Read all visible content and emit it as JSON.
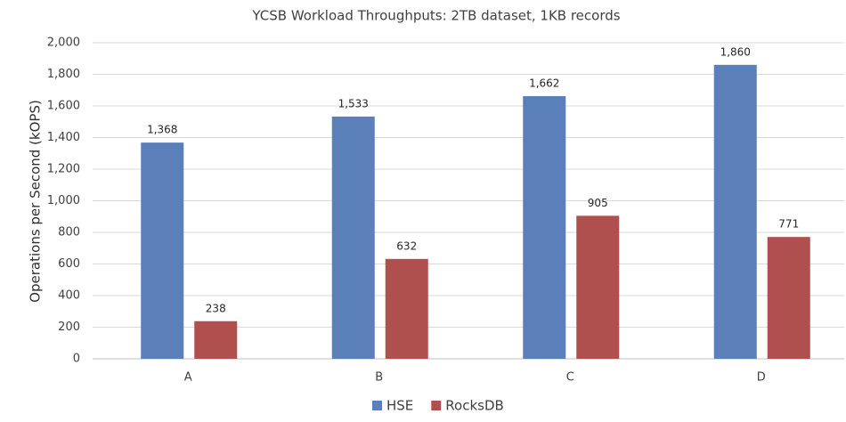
{
  "chart_data": {
    "type": "bar",
    "title": "YCSB Workload Throughputs: 2TB dataset, 1KB records",
    "y_label": "Operations per Second (kOPS)",
    "categories": [
      "A",
      "B",
      "C",
      "D"
    ],
    "series": [
      {
        "name": "HSE",
        "color": "#5b7fb8",
        "values": [
          1368,
          1533,
          1662,
          1860
        ],
        "value_labels": [
          "1,368",
          "1,533",
          "1,662",
          "1,860"
        ]
      },
      {
        "name": "RocksDB",
        "color": "#b0504e",
        "values": [
          238,
          632,
          905,
          771
        ],
        "value_labels": [
          "238",
          "632",
          "905",
          "771"
        ]
      }
    ],
    "ylim": [
      0,
      2000
    ],
    "yticks": [
      0,
      200,
      400,
      600,
      800,
      {
        "value": 1000,
        "label": "1,000"
      },
      {
        "value": 1200,
        "label": "1,200"
      },
      {
        "value": 1400,
        "label": "1,400"
      },
      {
        "value": 1600,
        "label": "1,600"
      },
      {
        "value": 1800,
        "label": "1,800"
      },
      {
        "value": 2000,
        "label": "2,000"
      }
    ],
    "grid": true,
    "legend": "bottom"
  }
}
